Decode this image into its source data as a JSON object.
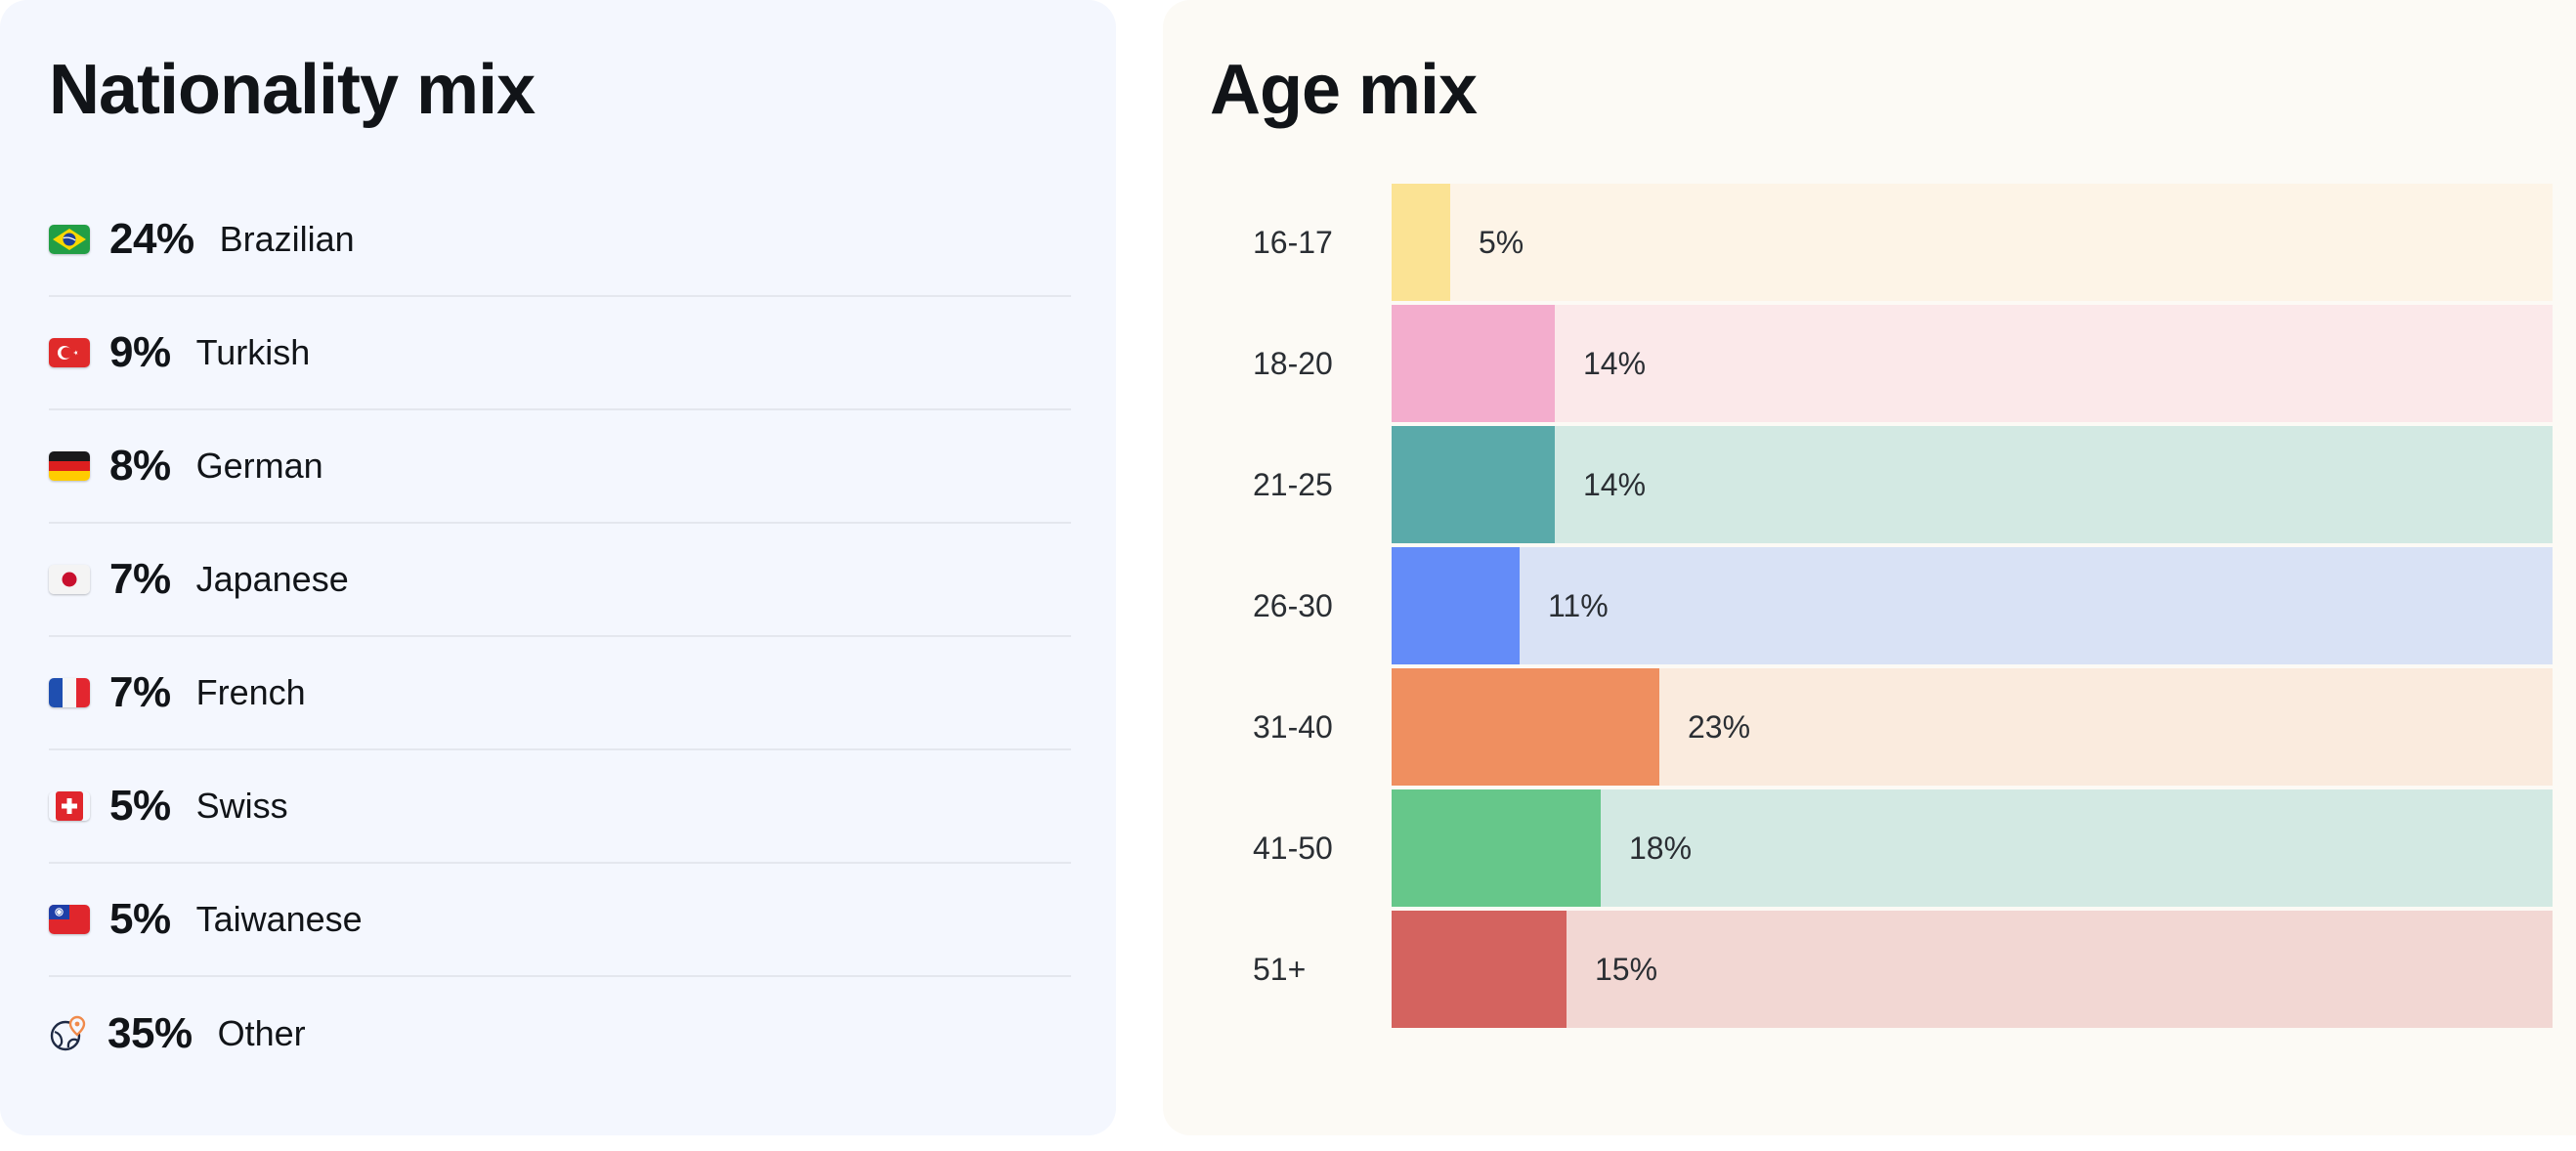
{
  "nationality": {
    "title": "Nationality mix",
    "items": [
      {
        "pct": "24%",
        "name": "Brazilian",
        "icon": "brazil-flag-icon"
      },
      {
        "pct": "9%",
        "name": "Turkish",
        "icon": "turkey-flag-icon"
      },
      {
        "pct": "8%",
        "name": "German",
        "icon": "germany-flag-icon"
      },
      {
        "pct": "7%",
        "name": "Japanese",
        "icon": "japan-flag-icon"
      },
      {
        "pct": "7%",
        "name": "French",
        "icon": "france-flag-icon"
      },
      {
        "pct": "5%",
        "name": "Swiss",
        "icon": "switzerland-flag-icon"
      },
      {
        "pct": "5%",
        "name": "Taiwanese",
        "icon": "taiwan-flag-icon"
      },
      {
        "pct": "35%",
        "name": "Other",
        "icon": "globe-pin-icon"
      }
    ]
  },
  "age": {
    "title": "Age mix"
  },
  "chart_data": {
    "type": "bar",
    "orientation": "horizontal",
    "categories": [
      "16-17",
      "18-20",
      "21-25",
      "26-30",
      "31-40",
      "41-50",
      "51+"
    ],
    "values": [
      5,
      14,
      14,
      11,
      23,
      18,
      15
    ],
    "value_labels": [
      "5%",
      "14%",
      "14%",
      "11%",
      "23%",
      "18%",
      "15%"
    ],
    "xlim": [
      0,
      100
    ],
    "grid": false,
    "colors": {
      "bars": [
        "#fbe394",
        "#f3adcd",
        "#5aaaaa",
        "#648cf8",
        "#ef8f60",
        "#66c78a",
        "#d4635f"
      ],
      "tracks": [
        "#fdf4e7",
        "#fbe9ea",
        "#d3e9e3",
        "#d9e2f5",
        "#faebde",
        "#d3e9e3",
        "#f2d7d3"
      ]
    }
  }
}
